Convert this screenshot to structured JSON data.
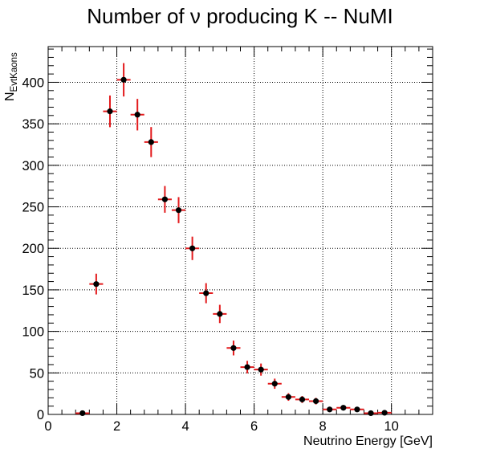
{
  "chart_data": {
    "type": "scatter",
    "title": "Number of ν producing K -- NuMI",
    "xlabel": "Neutrino Energy [GeV]",
    "ylabel": {
      "main": "N",
      "subscript": "EvtKaons"
    },
    "xlim": [
      0,
      11.2
    ],
    "ylim": [
      0,
      443
    ],
    "x_ticks": [
      0,
      2,
      4,
      6,
      8,
      10
    ],
    "y_ticks": [
      0,
      50,
      100,
      150,
      200,
      250,
      300,
      350,
      400
    ],
    "grid": true,
    "marker_color": "#000000",
    "error_bar_color": "#e31a1c",
    "bin_half_width": 0.2,
    "series": [
      {
        "points": [
          {
            "x": 1.0,
            "y": 1.5,
            "err": 1.2
          },
          {
            "x": 1.4,
            "y": 157,
            "err": 12.5
          },
          {
            "x": 1.8,
            "y": 365,
            "err": 19.1
          },
          {
            "x": 2.2,
            "y": 403,
            "err": 20.1
          },
          {
            "x": 2.6,
            "y": 361,
            "err": 19.0
          },
          {
            "x": 3.0,
            "y": 328,
            "err": 18.1
          },
          {
            "x": 3.4,
            "y": 259,
            "err": 16.1
          },
          {
            "x": 3.8,
            "y": 246,
            "err": 15.7
          },
          {
            "x": 4.2,
            "y": 200,
            "err": 14.1
          },
          {
            "x": 4.6,
            "y": 146,
            "err": 12.1
          },
          {
            "x": 5.0,
            "y": 121,
            "err": 11.0
          },
          {
            "x": 5.4,
            "y": 80,
            "err": 8.9
          },
          {
            "x": 5.8,
            "y": 57,
            "err": 7.5
          },
          {
            "x": 6.2,
            "y": 54,
            "err": 7.3
          },
          {
            "x": 6.6,
            "y": 37,
            "err": 6.1
          },
          {
            "x": 7.0,
            "y": 21,
            "err": 4.6
          },
          {
            "x": 7.4,
            "y": 18,
            "err": 4.2
          },
          {
            "x": 7.8,
            "y": 16,
            "err": 4.0
          },
          {
            "x": 8.2,
            "y": 6,
            "err": 2.4
          },
          {
            "x": 8.6,
            "y": 8,
            "err": 2.8
          },
          {
            "x": 9.0,
            "y": 6,
            "err": 2.4
          },
          {
            "x": 9.4,
            "y": 1.5,
            "err": 1.2
          },
          {
            "x": 9.8,
            "y": 2,
            "err": 1.4
          }
        ]
      }
    ]
  }
}
